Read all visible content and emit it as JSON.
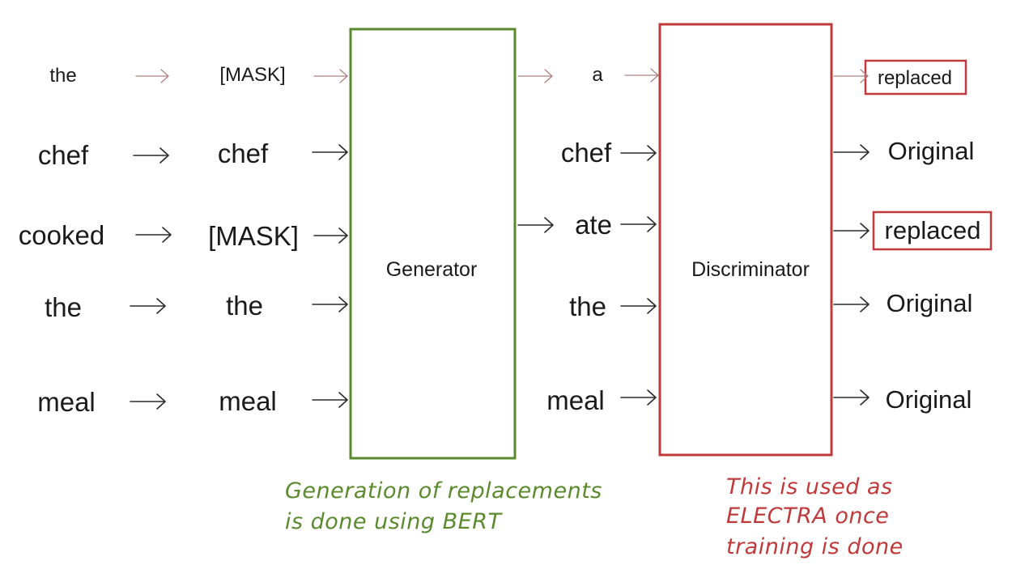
{
  "colors": {
    "generator": "#5b8a2e",
    "discriminator": "#c0393b",
    "text": "#1a1a1a"
  },
  "columns": {
    "input": [
      "the",
      "chef",
      "cooked",
      "the",
      "meal"
    ],
    "masked": [
      "[MASK]",
      "chef",
      "[MASK]",
      "the",
      "meal"
    ],
    "generated": [
      "a",
      "chef",
      "ate",
      "the",
      "meal"
    ],
    "output": [
      "replaced",
      "Original",
      "replaced",
      "Original",
      "Original"
    ]
  },
  "highlighted_outputs": [
    0,
    2
  ],
  "boxes": {
    "generator": "Generator",
    "discriminator": "Discriminator"
  },
  "notes": {
    "generator": [
      "Generation of replacements",
      "is done using BERT"
    ],
    "discriminator": [
      "This is used as",
      "ELECTRA once",
      "training is done"
    ]
  }
}
